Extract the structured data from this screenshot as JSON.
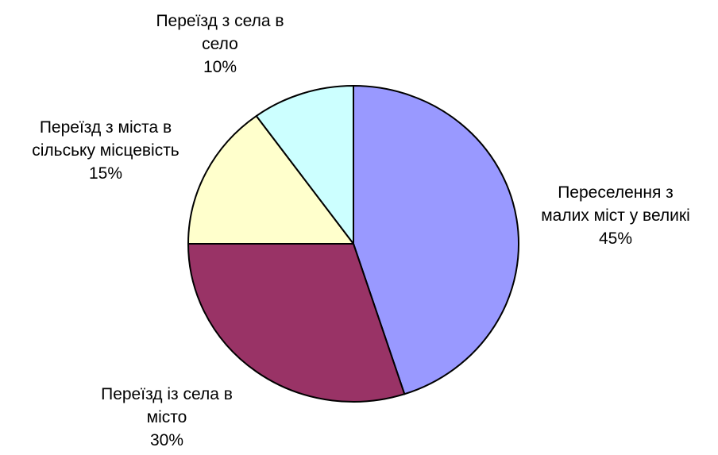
{
  "chart_data": {
    "type": "pie",
    "start_angle_deg": 0,
    "direction": "clockwise",
    "slices": [
      {
        "label_lines": [
          "Переселення з",
          "малих міст у великі"
        ],
        "value": 45,
        "value_label": "45%",
        "color": "#9999ff"
      },
      {
        "label_lines": [
          "Переїзд із села в",
          "місто"
        ],
        "value": 30,
        "value_label": "30%",
        "color": "#993366"
      },
      {
        "label_lines": [
          "Переїзд з міста в",
          "сільську місцевість"
        ],
        "value": 15,
        "value_label": "15%",
        "color": "#ffffcc"
      },
      {
        "label_lines": [
          "Переїзд з села в",
          "село"
        ],
        "value": 10,
        "value_label": "10%",
        "color": "#ccffff"
      }
    ],
    "outline_color": "#000000"
  }
}
